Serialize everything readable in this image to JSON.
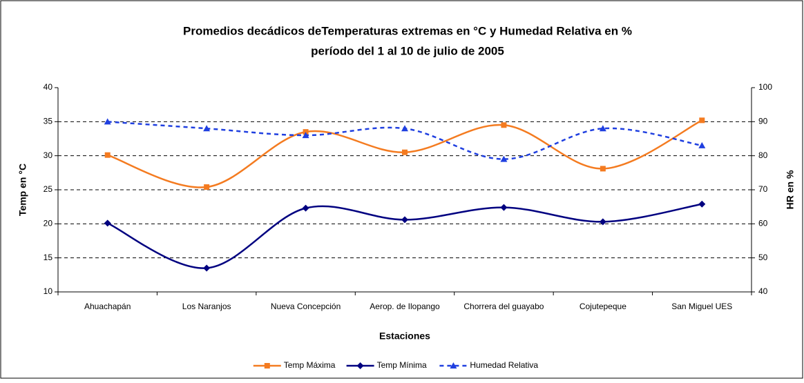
{
  "chart_data": {
    "type": "line",
    "title": "Promedios decádicos deTemperaturas extremas en °C  y Humedad Relativa en %",
    "subtitle": "período del 1 al 10 de julio de 2005",
    "x_label": "Estaciones",
    "y_label": "Temp en °C",
    "y2_label": "HR en %",
    "categories": [
      "Ahuachapán",
      "Los Naranjos",
      "Nueva Concepción",
      "Aerop. de Ilopango",
      "Chorrera del guayabo",
      "Cojutepeque",
      "San Miguel UES"
    ],
    "series": [
      {
        "name": "Temp Máxima",
        "color": "#f47b20",
        "marker": "square",
        "dash": false,
        "values": [
          30.1,
          25.4,
          33.5,
          30.5,
          34.5,
          28.1,
          35.2
        ]
      },
      {
        "name": "Temp Mínima",
        "color": "#000080",
        "marker": "diamond",
        "dash": false,
        "values": [
          20.1,
          13.5,
          22.3,
          20.6,
          22.4,
          20.3,
          22.9
        ]
      },
      {
        "name": "Humedad Relativa",
        "color": "#1f3fe0",
        "marker": "triangle",
        "dash": true,
        "axis": "y2",
        "values": [
          90,
          88,
          86,
          88,
          79,
          88,
          83
        ]
      }
    ],
    "ylim": [
      10,
      40
    ],
    "yticks": [
      10,
      15,
      20,
      25,
      30,
      35,
      40
    ],
    "y2lim": [
      40,
      100
    ],
    "y2ticks": [
      40,
      50,
      60,
      70,
      80,
      90,
      100
    ],
    "grid": true,
    "smooth": true,
    "legend": "bottom"
  }
}
